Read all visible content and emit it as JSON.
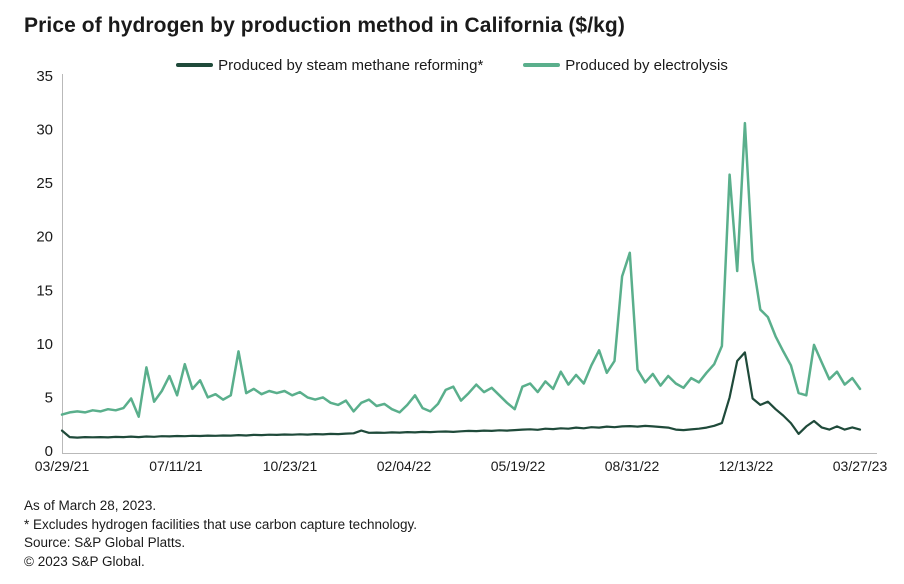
{
  "header": {
    "title": "Price of hydrogen by production method in California ($/kg)"
  },
  "chart_data": {
    "type": "line",
    "title": "Price of hydrogen by production method in California ($/kg)",
    "x_note": "weekly samples from 03/29/21 to 03/27/23",
    "x_tick_labels": [
      "03/29/21",
      "07/11/21",
      "10/23/21",
      "02/04/22",
      "05/19/22",
      "08/31/22",
      "12/13/22",
      "03/27/23"
    ],
    "yticks": [
      0,
      5,
      10,
      15,
      20,
      25,
      30,
      35
    ],
    "ylim": [
      0,
      35
    ],
    "grid": false,
    "legend_position": "top",
    "axis_color": "#b9b9b9",
    "text_color": "#1a1a1a",
    "series": [
      {
        "id": "smr",
        "name": "Produced by steam methane reforming*",
        "color": "#1f4a3a",
        "values": [
          1.9,
          1.3,
          1.25,
          1.3,
          1.28,
          1.3,
          1.27,
          1.32,
          1.3,
          1.34,
          1.3,
          1.35,
          1.33,
          1.38,
          1.36,
          1.4,
          1.38,
          1.42,
          1.4,
          1.44,
          1.42,
          1.45,
          1.44,
          1.48,
          1.45,
          1.5,
          1.48,
          1.52,
          1.5,
          1.54,
          1.52,
          1.56,
          1.53,
          1.58,
          1.55,
          1.6,
          1.58,
          1.62,
          1.65,
          1.9,
          1.7,
          1.72,
          1.7,
          1.74,
          1.72,
          1.76,
          1.74,
          1.78,
          1.76,
          1.8,
          1.82,
          1.78,
          1.84,
          1.88,
          1.86,
          1.9,
          1.88,
          1.93,
          1.9,
          1.95,
          2.0,
          2.03,
          1.98,
          2.08,
          2.04,
          2.12,
          2.08,
          2.18,
          2.12,
          2.22,
          2.18,
          2.28,
          2.22,
          2.3,
          2.32,
          2.28,
          2.34,
          2.3,
          2.24,
          2.18,
          2.0,
          1.95,
          2.02,
          2.08,
          2.18,
          2.35,
          2.6,
          5.0,
          8.4,
          9.2,
          4.9,
          4.3,
          4.6,
          3.9,
          3.3,
          2.6,
          1.6,
          2.3,
          2.8,
          2.2,
          2.0,
          2.3,
          2.0,
          2.2,
          2.0
        ]
      },
      {
        "id": "electrolysis",
        "name": "Produced by electrolysis",
        "color": "#5aaf8c",
        "values": [
          3.4,
          3.6,
          3.7,
          3.6,
          3.8,
          3.7,
          3.9,
          3.8,
          4.0,
          4.9,
          3.2,
          7.8,
          4.6,
          5.6,
          7.0,
          5.2,
          8.1,
          5.8,
          6.6,
          5.0,
          5.3,
          4.8,
          5.2,
          9.3,
          5.4,
          5.8,
          5.3,
          5.6,
          5.4,
          5.6,
          5.2,
          5.5,
          5.0,
          4.8,
          5.0,
          4.5,
          4.3,
          4.7,
          3.7,
          4.5,
          4.8,
          4.2,
          4.4,
          3.9,
          3.6,
          4.3,
          5.2,
          4.0,
          3.7,
          4.4,
          5.7,
          6.0,
          4.7,
          5.4,
          6.2,
          5.5,
          5.9,
          5.2,
          4.5,
          3.9,
          6.0,
          6.3,
          5.5,
          6.5,
          5.8,
          7.4,
          6.2,
          7.1,
          6.3,
          8.0,
          9.4,
          7.3,
          8.4,
          16.3,
          18.5,
          7.6,
          6.4,
          7.2,
          6.1,
          7.0,
          6.3,
          5.9,
          6.8,
          6.4,
          7.3,
          8.1,
          9.8,
          25.8,
          16.8,
          30.6,
          17.8,
          13.2,
          12.5,
          10.7,
          9.3,
          8.0,
          5.4,
          5.2,
          9.9,
          8.3,
          6.7,
          7.4,
          6.2,
          6.8,
          5.8
        ]
      }
    ]
  },
  "footnotes": [
    "As of March 28, 2023.",
    "* Excludes hydrogen facilities that use carbon capture technology.",
    "Source: S&P Global Platts.",
    "© 2023 S&P Global."
  ]
}
